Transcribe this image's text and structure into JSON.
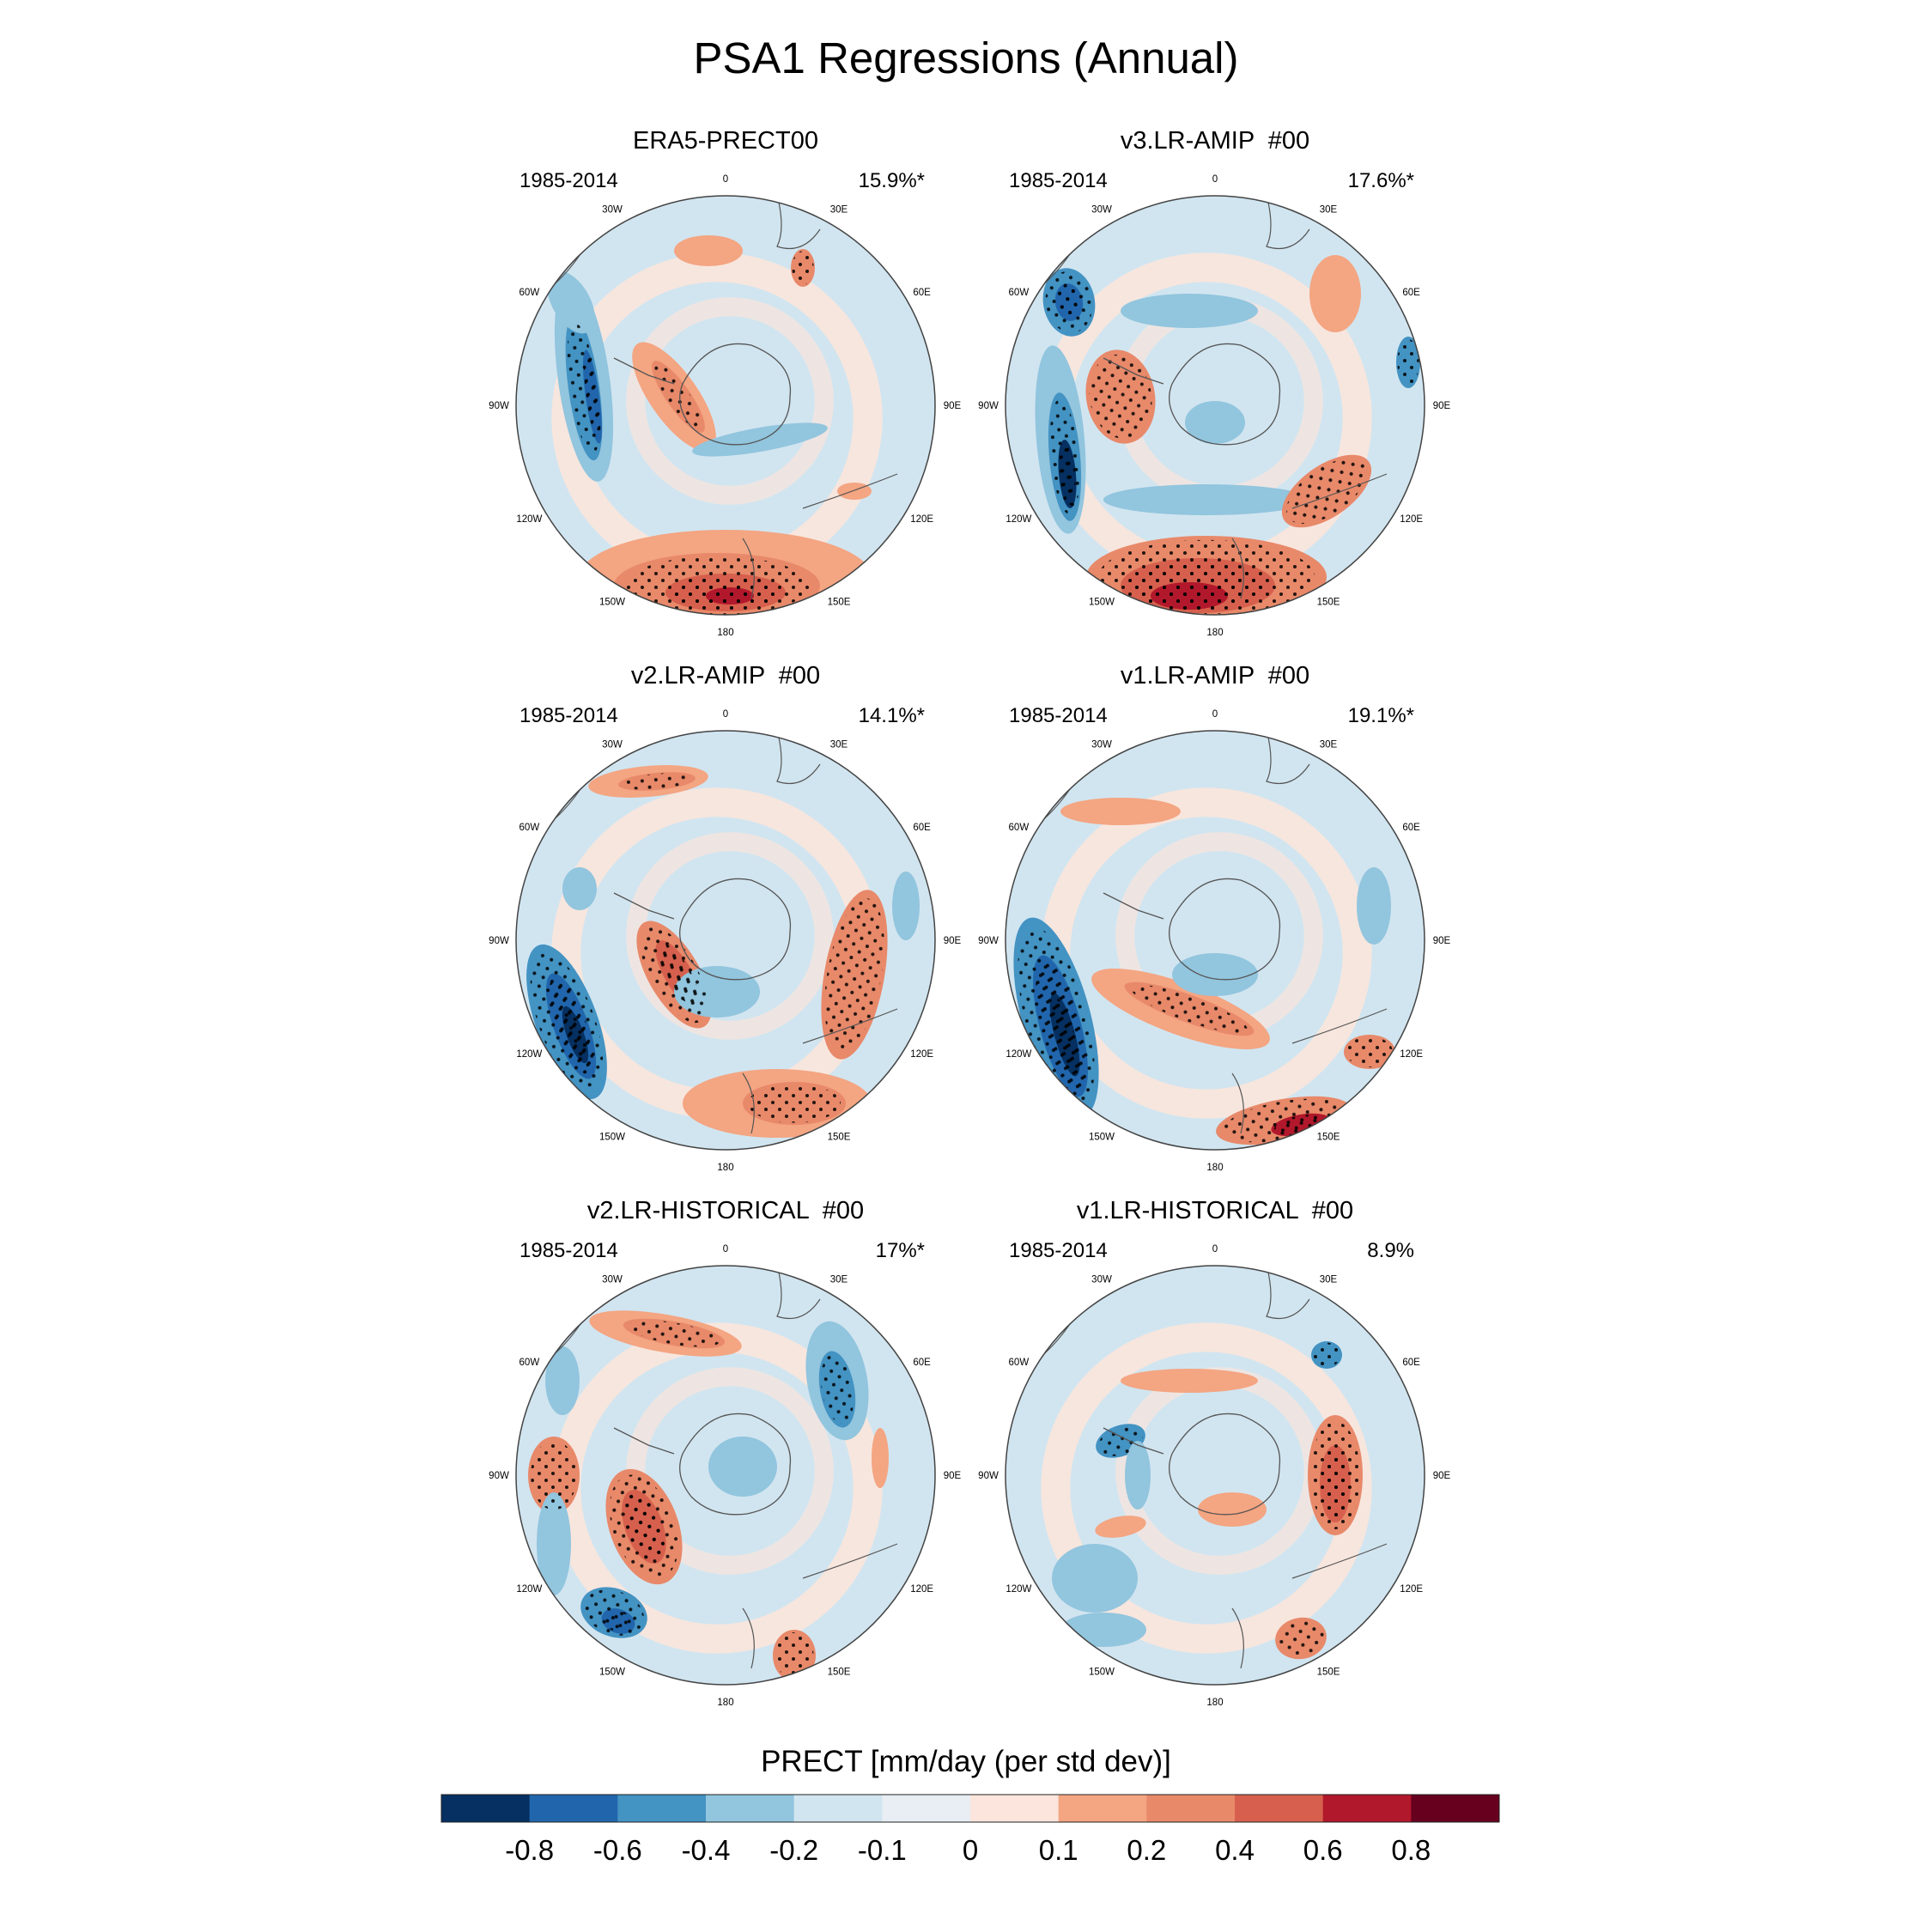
{
  "title": "PSA1 Regressions (Annual)",
  "panels": [
    {
      "title": "ERA5-PRECT00",
      "years": "1985-2014",
      "percent": "15.9%*"
    },
    {
      "title": "v3.LR-AMIP  #00",
      "years": "1985-2014",
      "percent": "17.6%*"
    },
    {
      "title": "v2.LR-AMIP  #00",
      "years": "1985-2014",
      "percent": "14.1%*"
    },
    {
      "title": "v1.LR-AMIP  #00",
      "years": "1985-2014",
      "percent": "19.1%*"
    },
    {
      "title": "v2.LR-HISTORICAL  #00",
      "years": "1985-2014",
      "percent": "17%*"
    },
    {
      "title": "v1.LR-HISTORICAL  #00",
      "years": "1985-2014",
      "percent": "8.9%"
    }
  ],
  "longitude_labels": [
    "0",
    "30E",
    "60E",
    "90E",
    "120E",
    "150E",
    "180",
    "150W",
    "120W",
    "90W",
    "60W",
    "30W"
  ],
  "colorbar": {
    "title": "PRECT [mm/day (per std dev)]",
    "ticks": [
      "-0.8",
      "-0.6",
      "-0.4",
      "-0.2",
      "-0.1",
      "0",
      "0.1",
      "0.2",
      "0.4",
      "0.6",
      "0.8"
    ],
    "colors": [
      "#053061",
      "#2166ac",
      "#4393c3",
      "#92c5de",
      "#d1e5f0",
      "#e8eef3",
      "#fbe5dc",
      "#f4a582",
      "#e8896a",
      "#d6604d",
      "#b2182b",
      "#67001f"
    ]
  }
}
